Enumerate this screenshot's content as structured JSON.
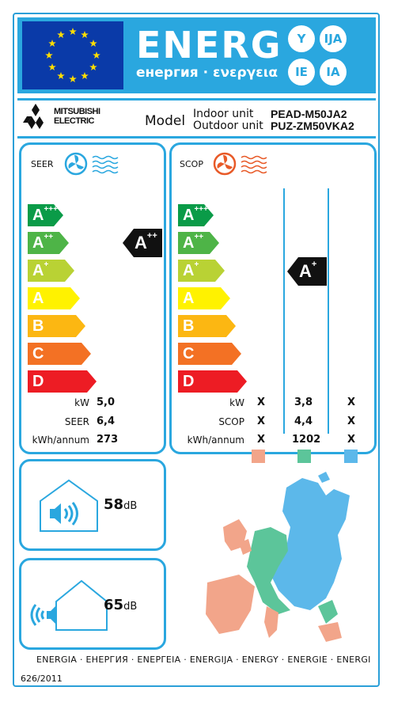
{
  "header": {
    "title": "ENERG",
    "subtitle": "енергия · ενεργεια",
    "suffixes": [
      "Y",
      "IJA",
      "IE",
      "IA"
    ]
  },
  "brand": {
    "line1": "MITSUBISHI",
    "line2": "ELECTRIC",
    "logo_icon": "mitsubishi-diamonds-icon"
  },
  "model": {
    "label": "Model",
    "indoor_label": "Indoor unit",
    "outdoor_label": "Outdoor unit",
    "indoor_code": "PEAD-M50JA2",
    "outdoor_code": "PUZ-ZM50VKA2"
  },
  "cooling": {
    "label": "SEER",
    "icon": "blue-fan-cooling-icon",
    "classes": [
      "A",
      "A",
      "A",
      "A",
      "B",
      "C",
      "D"
    ],
    "class_sups": [
      "+++",
      "++",
      "+",
      "",
      "",
      "",
      ""
    ],
    "rating": "A",
    "rating_sup": "++",
    "rows": [
      {
        "label": "kW",
        "value": "5,0"
      },
      {
        "label": "SEER",
        "value": "6,4"
      },
      {
        "label": "kWh/annum",
        "value": "273"
      }
    ]
  },
  "heating": {
    "label": "SCOP",
    "icon": "orange-fan-heating-icon",
    "classes": [
      "A",
      "A",
      "A",
      "A",
      "B",
      "C",
      "D"
    ],
    "class_sups": [
      "+++",
      "++",
      "+",
      "",
      "",
      "",
      ""
    ],
    "rating": "A",
    "rating_sup": "+",
    "rows": [
      {
        "label": "kW",
        "values": [
          "X",
          "3,8",
          "X"
        ]
      },
      {
        "label": "SCOP",
        "values": [
          "X",
          "4,4",
          "X"
        ]
      },
      {
        "label": "kWh/annum",
        "values": [
          "X",
          "1202",
          "X"
        ]
      }
    ],
    "zone_colors": [
      "#f2a58a",
      "#5cc59a",
      "#5cb8ea"
    ]
  },
  "class_colors": [
    "#0a9b48",
    "#4eb447",
    "#b9d234",
    "#fff200",
    "#fcb712",
    "#f37124",
    "#ed1c24"
  ],
  "indoor_noise": {
    "value": "58",
    "unit": "dB",
    "icon": "indoor-speaker-house-icon"
  },
  "outdoor_noise": {
    "value": "65",
    "unit": "dB",
    "icon": "outdoor-speaker-house-icon"
  },
  "map": {
    "icon": "europe-climate-zones-map-icon"
  },
  "footer": {
    "languages": "ENERGIA · ЕНЕРГИЯ · ΕΝΕΡΓΕΙΑ · ENERGIJA · ENERGY · ENERGIE · ENERGI",
    "regulation": "626/2011"
  }
}
